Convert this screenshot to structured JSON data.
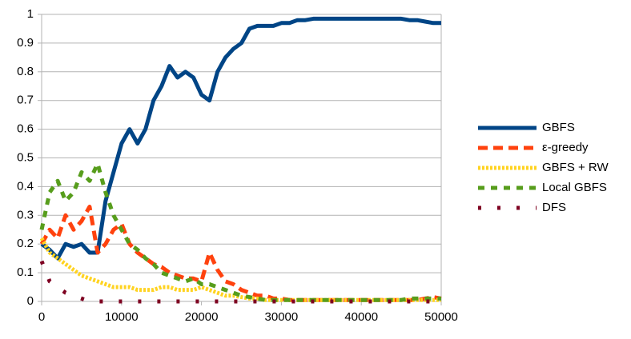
{
  "chart_data": {
    "type": "line",
    "x": [
      0,
      1000,
      2000,
      3000,
      4000,
      5000,
      6000,
      7000,
      8000,
      9000,
      10000,
      11000,
      12000,
      13000,
      14000,
      15000,
      16000,
      17000,
      18000,
      19000,
      20000,
      21000,
      22000,
      23000,
      24000,
      25000,
      26000,
      27000,
      28000,
      29000,
      30000,
      31000,
      32000,
      33000,
      34000,
      35000,
      36000,
      37000,
      38000,
      39000,
      40000,
      41000,
      42000,
      43000,
      44000,
      45000,
      46000,
      47000,
      48000,
      49000,
      50000
    ],
    "series": [
      {
        "name": "GBFS",
        "color": "#004586",
        "values": [
          0.2,
          0.18,
          0.15,
          0.2,
          0.19,
          0.2,
          0.17,
          0.17,
          0.35,
          0.45,
          0.55,
          0.6,
          0.55,
          0.6,
          0.7,
          0.75,
          0.82,
          0.78,
          0.8,
          0.78,
          0.72,
          0.7,
          0.8,
          0.85,
          0.88,
          0.9,
          0.95,
          0.96,
          0.96,
          0.96,
          0.97,
          0.97,
          0.98,
          0.98,
          0.985,
          0.985,
          0.985,
          0.985,
          0.985,
          0.985,
          0.985,
          0.985,
          0.985,
          0.985,
          0.985,
          0.985,
          0.98,
          0.98,
          0.975,
          0.97,
          0.97
        ]
      },
      {
        "name": "ε-greedy",
        "color": "#ff420e",
        "values": [
          0.2,
          0.25,
          0.22,
          0.3,
          0.25,
          0.28,
          0.33,
          0.17,
          0.2,
          0.25,
          0.27,
          0.2,
          0.17,
          0.15,
          0.13,
          0.12,
          0.1,
          0.09,
          0.08,
          0.08,
          0.07,
          0.17,
          0.11,
          0.07,
          0.06,
          0.04,
          0.03,
          0.02,
          0.02,
          0.01,
          0.01,
          0.005,
          0.005,
          0.005,
          0.005,
          0.005,
          0.005,
          0.005,
          0.005,
          0.005,
          0.005,
          0.005,
          0.005,
          0.005,
          0.005,
          0.005,
          0.005,
          0.005,
          0.01,
          0.015,
          0.01
        ]
      },
      {
        "name": "GBFS + RW",
        "color": "#ffd320",
        "values": [
          0.22,
          0.17,
          0.15,
          0.13,
          0.11,
          0.09,
          0.08,
          0.07,
          0.06,
          0.05,
          0.05,
          0.05,
          0.04,
          0.04,
          0.04,
          0.05,
          0.05,
          0.04,
          0.04,
          0.04,
          0.05,
          0.04,
          0.03,
          0.02,
          0.02,
          0.015,
          0.01,
          0.01,
          0.005,
          0.005,
          0.005,
          0.005,
          0.005,
          0.005,
          0.005,
          0.005,
          0.005,
          0.005,
          0.005,
          0.005,
          0.005,
          0.005,
          0.005,
          0.005,
          0.005,
          0.005,
          0.005,
          0.005,
          0.005,
          0.005,
          0.005
        ]
      },
      {
        "name": "Local GBFS",
        "color": "#579d1c",
        "values": [
          0.25,
          0.38,
          0.42,
          0.35,
          0.38,
          0.45,
          0.42,
          0.48,
          0.38,
          0.3,
          0.25,
          0.2,
          0.18,
          0.15,
          0.13,
          0.1,
          0.09,
          0.08,
          0.07,
          0.08,
          0.06,
          0.06,
          0.05,
          0.04,
          0.03,
          0.02,
          0.015,
          0.01,
          0.005,
          0.005,
          0.005,
          0.005,
          0.005,
          0.005,
          0.005,
          0.005,
          0.005,
          0.005,
          0.005,
          0.005,
          0.005,
          0.005,
          0.005,
          0.005,
          0.005,
          0.005,
          0.01,
          0.01,
          0.01,
          0.01,
          0.01
        ]
      },
      {
        "name": "DFS",
        "color": "#7e0021",
        "values": [
          0.14,
          0.07,
          0.05,
          0.03,
          0.02,
          0.01,
          0,
          0,
          0,
          0,
          0,
          0,
          0,
          0,
          0,
          0,
          0,
          0,
          0,
          0,
          0,
          0,
          0,
          0,
          0,
          0,
          0,
          0,
          0,
          0,
          0,
          0,
          0,
          0,
          0,
          0,
          0,
          0,
          0,
          0,
          0,
          0,
          0,
          0,
          0,
          0,
          0,
          0,
          0,
          0,
          0
        ]
      }
    ],
    "xlim": [
      0,
      50000
    ],
    "xticks": [
      0,
      10000,
      20000,
      30000,
      40000,
      50000
    ],
    "ylim": [
      0,
      1
    ],
    "yticks": [
      0,
      0.1,
      0.2,
      0.3,
      0.4,
      0.5,
      0.6,
      0.7,
      0.8,
      0.9,
      1
    ],
    "grid": true,
    "legend": "right"
  }
}
